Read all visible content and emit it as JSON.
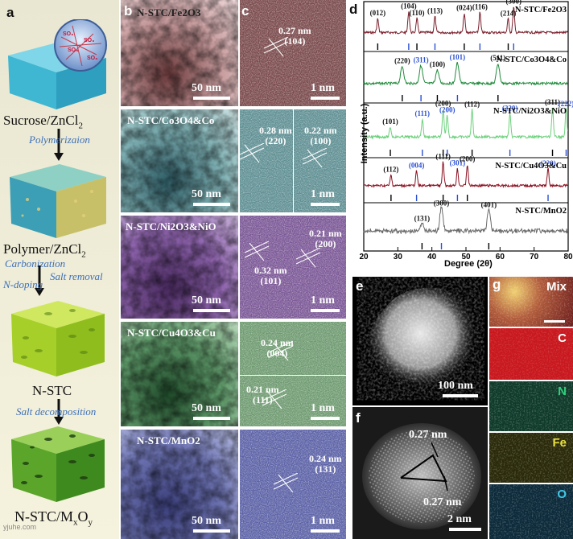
{
  "panel_a": {
    "label": "a",
    "steps": {
      "sucrose": "Sucrose/ZnCl",
      "sucrose_sub": "2",
      "polymerization": "Polymerizaion",
      "polymer": "Polymer/ZnCl",
      "polymer_sub": "2",
      "carbonization": "Carbonization",
      "ndoping": "N-doping",
      "salt_removal": "Salt removal",
      "nstc": "N-STC",
      "salt_decomposition": "Salt decomposition",
      "final_main": "N-STC/M",
      "final_x": "x",
      "final_o": "O",
      "final_y": "y"
    },
    "inset_so3": "SO3"
  },
  "panel_b": {
    "label": "b",
    "rows": [
      {
        "title": "N-STC/Fe2O3",
        "scale": "50 nm"
      },
      {
        "title": "N-STC/Co3O4&Co",
        "scale": "50 nm"
      },
      {
        "title": "N-STC/Ni2O3&NiO",
        "scale": "50 nm"
      },
      {
        "title": "N-STC/Cu4O3&Cu",
        "scale": "50 nm"
      },
      {
        "title": "N-STC/MnO2",
        "scale": "50 nm"
      }
    ]
  },
  "panel_c": {
    "label": "c",
    "scale": "1 nm",
    "lattices": [
      {
        "d": "0.27 nm",
        "plane": "(104)"
      },
      {
        "d": "0.28 nm",
        "plane": "(220)"
      },
      {
        "d": "0.22 nm",
        "plane": "(100)"
      },
      {
        "d": "0.21 nm",
        "plane": "(200)"
      },
      {
        "d": "0.32 nm",
        "plane": "(101)"
      },
      {
        "d": "0.24 nm",
        "plane": "(004)"
      },
      {
        "d": "0.21 nm",
        "plane": "(111)"
      },
      {
        "d": "0.24 nm",
        "plane": "(131)"
      }
    ]
  },
  "panel_d": {
    "label": "d",
    "xlabel": "Degree (2θ)",
    "ylabel": "Intensity (a.u.)",
    "xticks": [
      "20",
      "30",
      "40",
      "50",
      "60",
      "70",
      "80"
    ]
  },
  "chart_data": {
    "type": "line",
    "xlabel": "Degree (2θ)",
    "ylabel": "Intensity (a.u.)",
    "xlim": [
      20,
      80
    ],
    "series": [
      {
        "name": "N-STC/Fe2O3",
        "color": "#7a1f2b",
        "peaks": [
          [
            24.1,
            "(012)"
          ],
          [
            33.2,
            "(104)"
          ],
          [
            35.6,
            "(110)"
          ],
          [
            40.9,
            "(113)"
          ],
          [
            49.5,
            "(024)"
          ],
          [
            54.1,
            "(116)"
          ],
          [
            62.4,
            "(214)"
          ],
          [
            64.0,
            "(300)"
          ]
        ]
      },
      {
        "name": "N-STC/Co3O4&Co",
        "color": "#1f8a3a",
        "peaks": [
          [
            31.3,
            "(220)"
          ],
          [
            36.8,
            "(311)"
          ],
          [
            41.6,
            "(100)"
          ],
          [
            47.5,
            "(101)"
          ],
          [
            59.4,
            "(511)"
          ]
        ]
      },
      {
        "name": "N-STC/Ni2O3&NiO",
        "color": "#6ad07a",
        "peaks": [
          [
            27.8,
            "(101)"
          ],
          [
            37.2,
            "(111)"
          ],
          [
            43.3,
            "(200)"
          ],
          [
            44.5,
            "(200)"
          ],
          [
            51.8,
            "(112)"
          ],
          [
            62.9,
            "(220)"
          ],
          [
            75.4,
            "(311)"
          ],
          [
            79.4,
            "(222)"
          ]
        ]
      },
      {
        "name": "N-STC/Cu4O3&Cu",
        "color": "#8a1020",
        "peaks": [
          [
            28.0,
            "(112)"
          ],
          [
            35.5,
            "(004)"
          ],
          [
            43.3,
            "(111)"
          ],
          [
            47.5,
            "(301)"
          ],
          [
            50.4,
            "(200)"
          ],
          [
            74.1,
            "(220)"
          ]
        ]
      },
      {
        "name": "N-STC/MnO2",
        "color": "#6b6b6b",
        "peaks": [
          [
            37.1,
            "(131)"
          ],
          [
            42.8,
            "(300)"
          ],
          [
            56.7,
            "(401)"
          ]
        ]
      }
    ]
  },
  "panel_e": {
    "label": "e",
    "scale": "100 nm"
  },
  "panel_f": {
    "label": "f",
    "scale": "2 nm",
    "d1": "0.27 nm",
    "d2": "0.27 nm"
  },
  "panel_g": {
    "label": "g",
    "maps": [
      "Mix",
      "C",
      "N",
      "Fe",
      "O"
    ]
  },
  "watermark": "yjuhe.com"
}
